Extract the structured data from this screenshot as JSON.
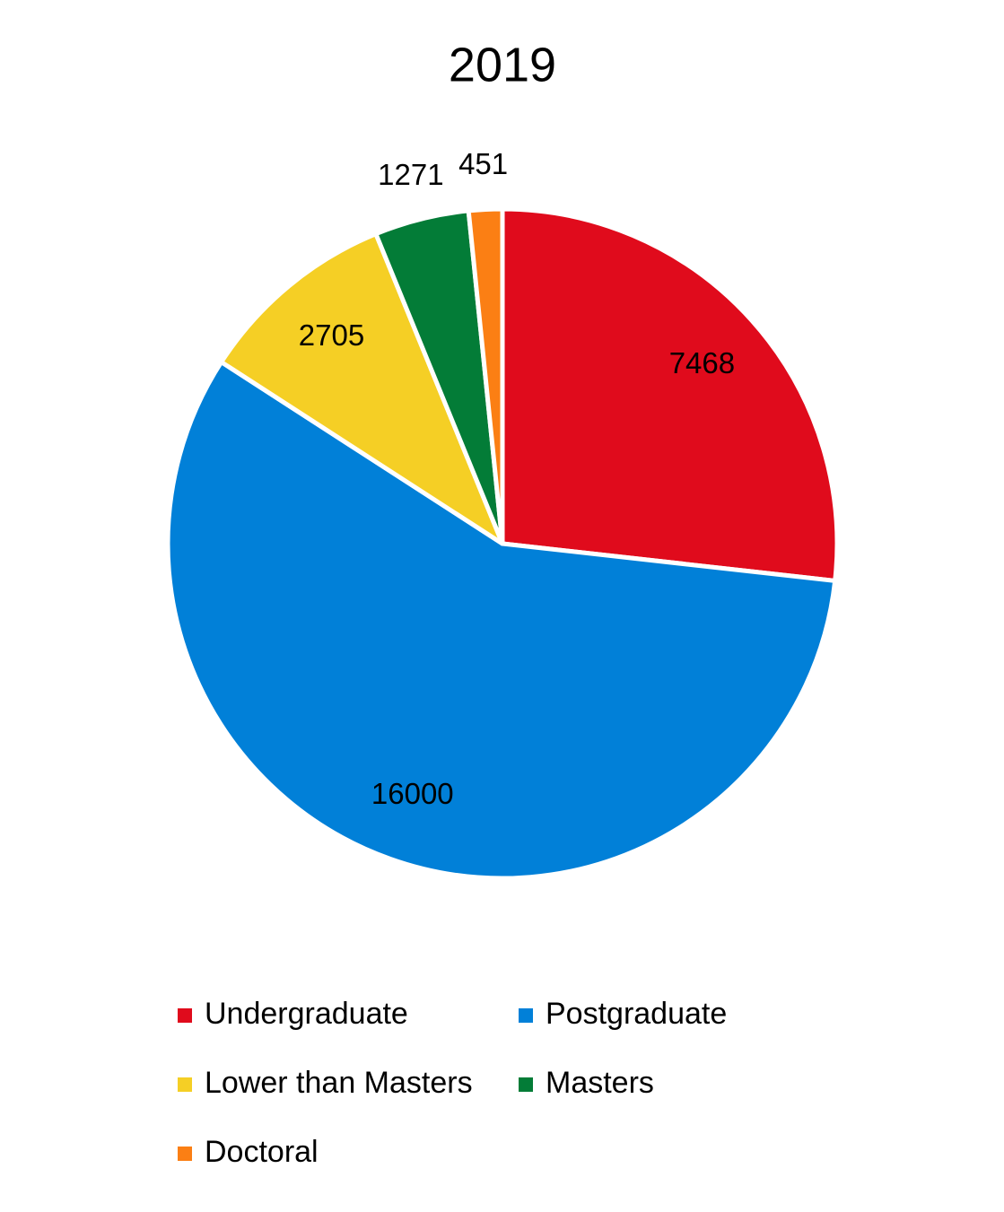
{
  "chart_data": {
    "type": "pie",
    "title": "2019",
    "categories": [
      "Undergraduate",
      "Postgraduate",
      "Lower than Masters",
      "Masters",
      "Doctoral"
    ],
    "values": [
      7468,
      16000,
      2705,
      1271,
      451
    ],
    "colors": [
      "#e00b1c",
      "#0180d8",
      "#f5cf25",
      "#037c37",
      "#fb7f14"
    ]
  }
}
